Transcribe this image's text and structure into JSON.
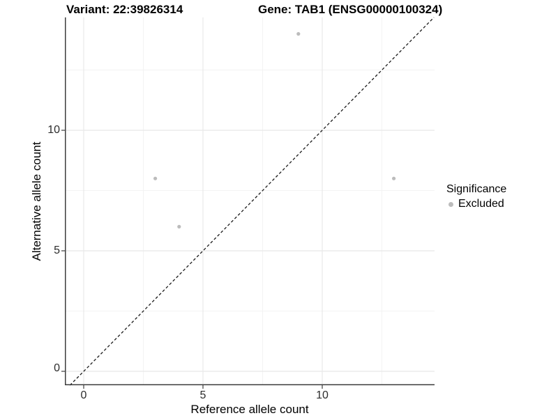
{
  "titles": {
    "variant": "Variant: 22:39826314",
    "gene": "Gene: TAB1 (ENSG00000100324)"
  },
  "x_axis": {
    "label": "Reference allele count",
    "ticks": [
      "0",
      "5",
      "10"
    ]
  },
  "y_axis": {
    "label": "Alternative allele count",
    "ticks": [
      "0",
      "5",
      "10"
    ]
  },
  "legend": {
    "title": "Significance",
    "items": [
      {
        "label": "Excluded",
        "color": "#bcbcbc"
      }
    ]
  },
  "colors": {
    "point": "#bcbcbc",
    "axis_line": "#3d3d3d",
    "grid_major": "#e8e8e8",
    "grid_minor": "#f3f3f3",
    "reference_line": "#1a1a1a"
  },
  "chart_data": {
    "type": "scatter",
    "title": "Variant: 22:39826314 | Gene: TAB1 (ENSG00000100324)",
    "xlabel": "Reference allele count",
    "ylabel": "Alternative allele count",
    "series": [
      {
        "name": "Excluded",
        "color": "#bcbcbc",
        "points": [
          {
            "x": 3,
            "y": 8
          },
          {
            "x": 4,
            "y": 6
          },
          {
            "x": 9,
            "y": 14
          },
          {
            "x": 13,
            "y": 8
          }
        ]
      }
    ],
    "reference_line": {
      "type": "identity",
      "slope": 1,
      "intercept": 0,
      "style": "dashed",
      "color": "#1a1a1a"
    },
    "xlim": [
      -0.79,
      14.7
    ],
    "ylim": [
      -0.58,
      14.68
    ],
    "x_major_ticks": [
      0,
      5,
      10
    ],
    "y_major_ticks": [
      0,
      5,
      10
    ],
    "x_minor_ticks": [
      2.5,
      7.5,
      12.5
    ],
    "y_minor_ticks": [
      2.5,
      7.5,
      12.5
    ],
    "grid": true,
    "legend_position": "right",
    "legend_title": "Significance"
  }
}
